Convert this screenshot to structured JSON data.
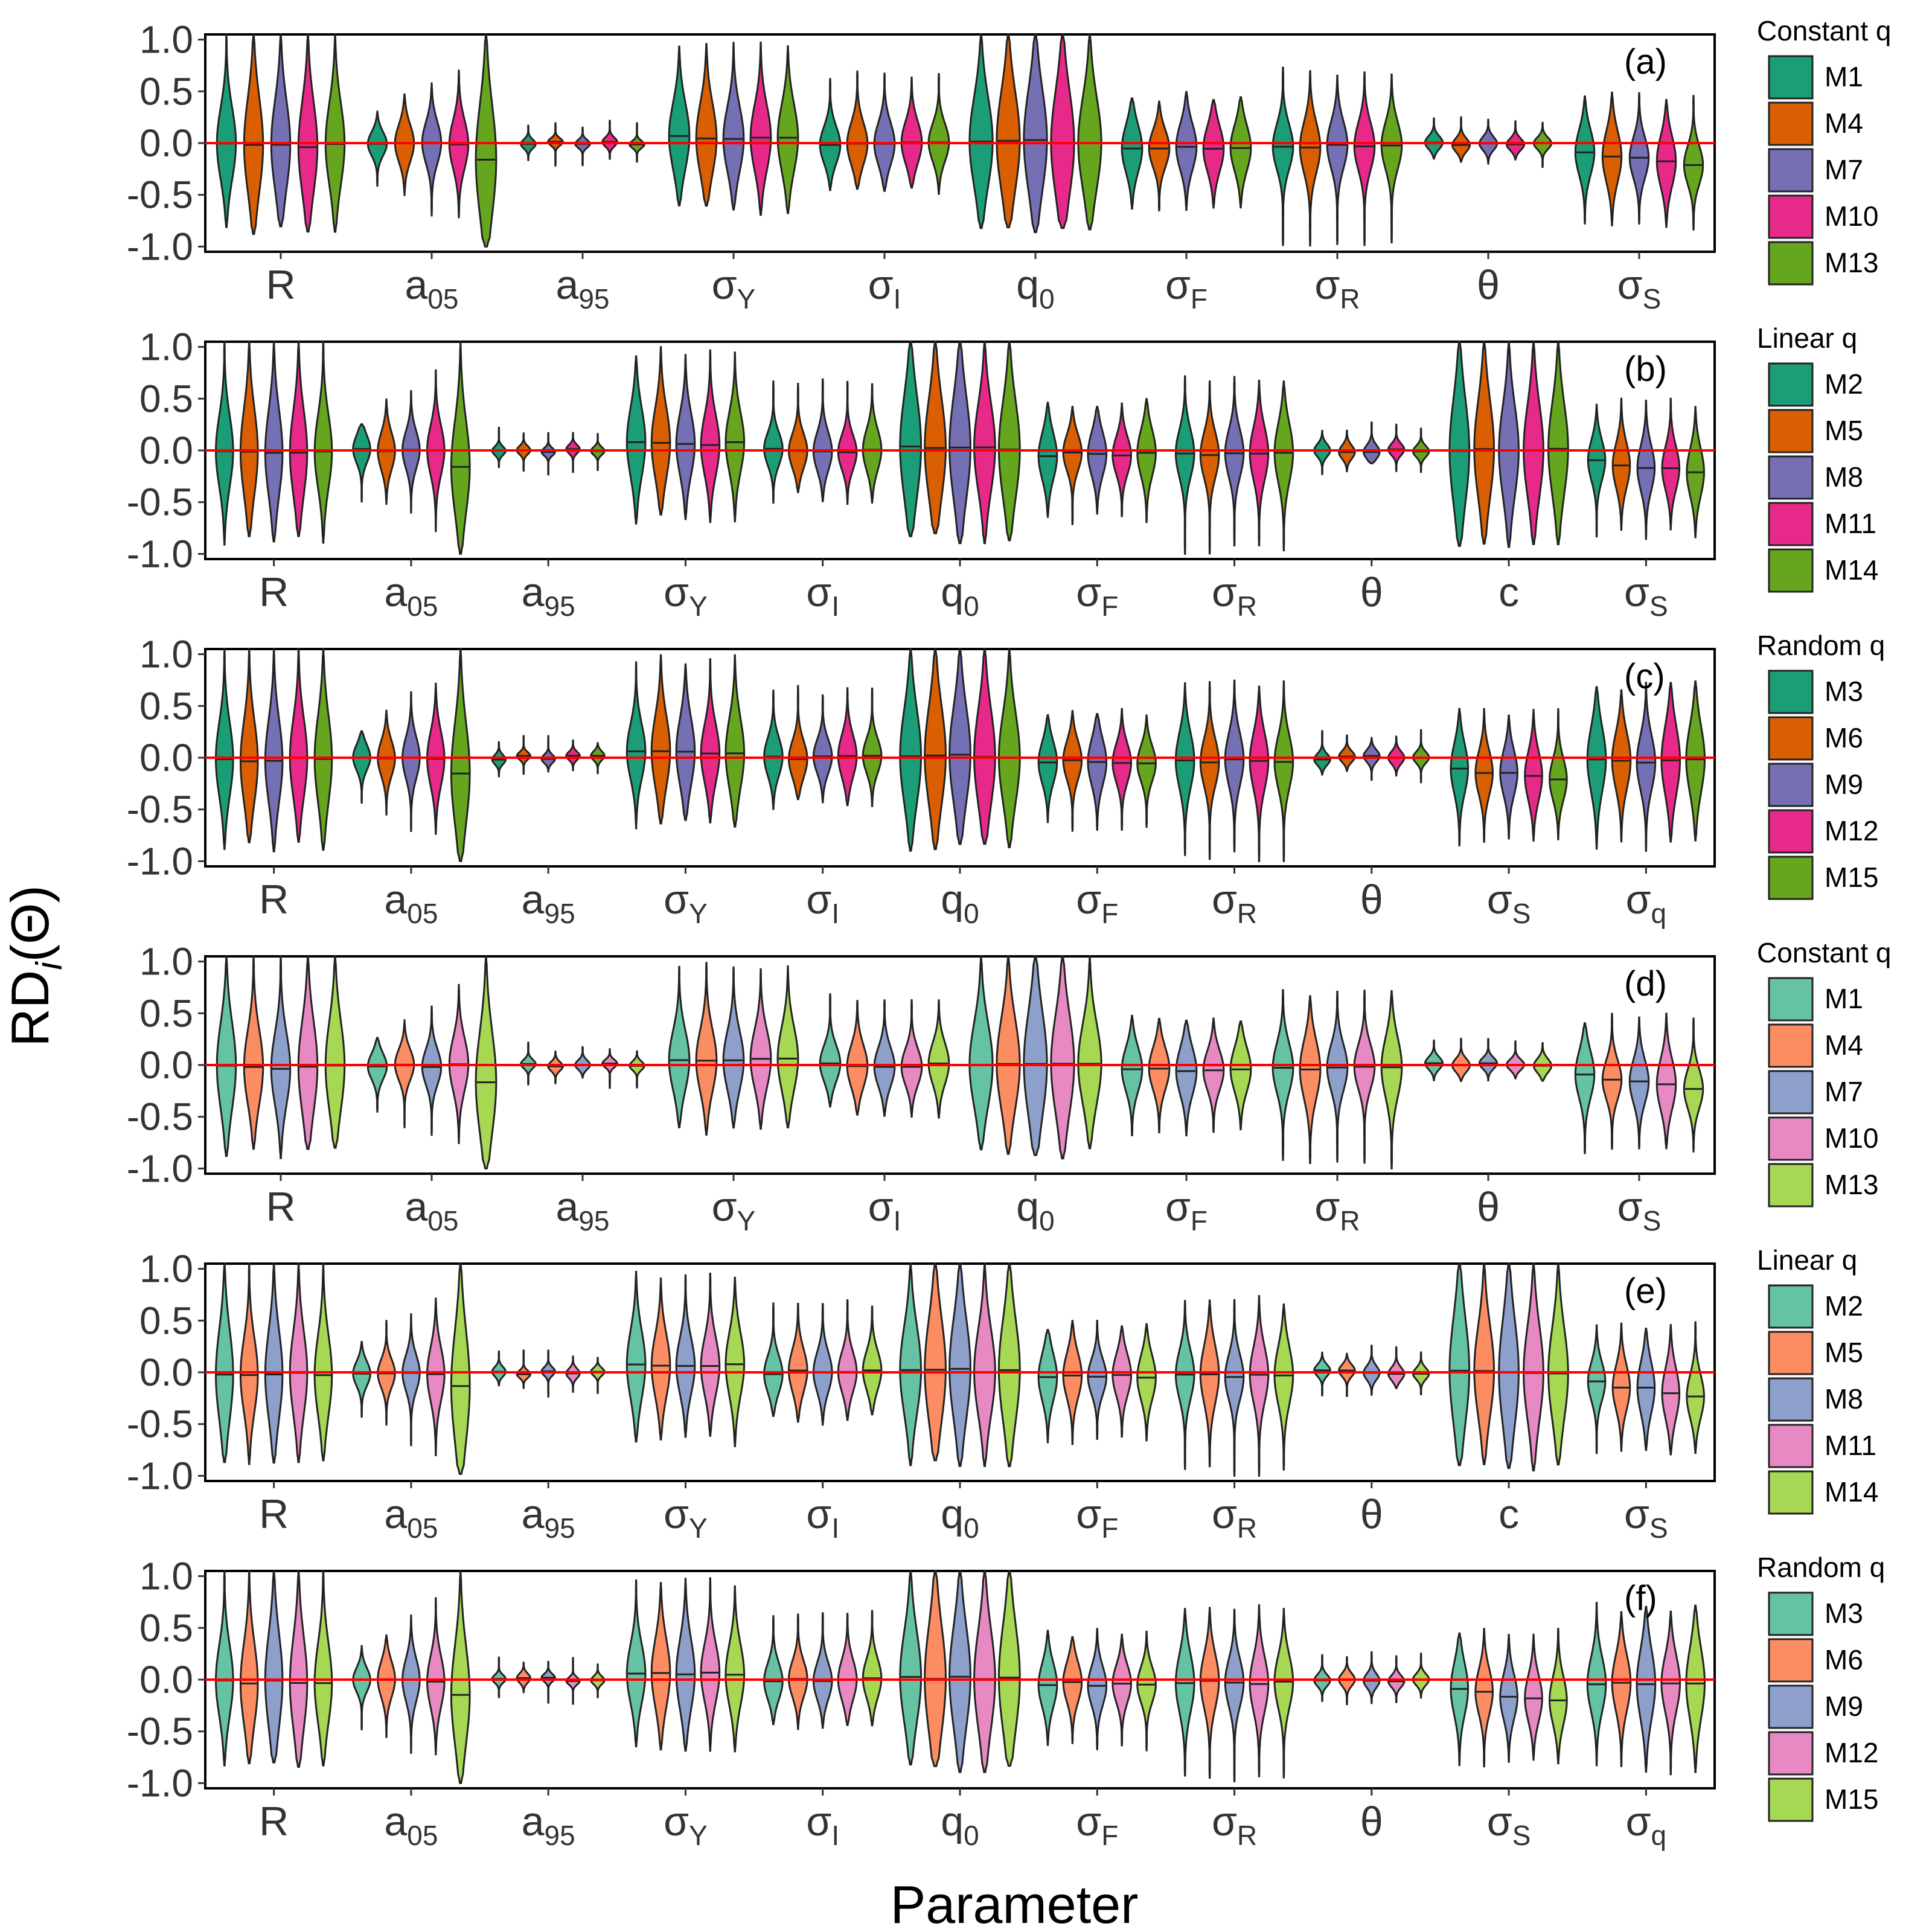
{
  "chart_data": {
    "type": "violin",
    "ylabel": "RD",
    "ylabel_sub": "i",
    "ylabel_tail": "(Θ)",
    "xlabel": "Parameter",
    "ylim": [
      -1.05,
      1.05
    ],
    "yticks": [
      1.0,
      0.5,
      0.0,
      -0.5,
      -1.0
    ],
    "ytick_labels": [
      "1.0",
      "0.5",
      "0.0",
      "-0.5",
      "-1.0"
    ],
    "reference_line": {
      "y": 0.0,
      "color": "#ff0000"
    },
    "palette_dark": [
      "#1b9e77",
      "#d95f02",
      "#7570b3",
      "#e7298a",
      "#66a61e"
    ],
    "palette_light": [
      "#66c2a5",
      "#fc8d62",
      "#8da0cb",
      "#e78ac3",
      "#a6d854"
    ],
    "panels": [
      {
        "tag": "(a)",
        "palette": "dark",
        "legend_title": "Constant q",
        "models": [
          "M1",
          "M4",
          "M7",
          "M10",
          "M13"
        ],
        "parameters": [
          {
            "base": "R",
            "sub": ""
          },
          {
            "base": "a",
            "sub": "05"
          },
          {
            "base": "a",
            "sub": "95"
          },
          {
            "base": "σ",
            "sub": "Y"
          },
          {
            "base": "σ",
            "sub": "I"
          },
          {
            "base": "q",
            "sub": "0"
          },
          {
            "base": "σ",
            "sub": "F"
          },
          {
            "base": "σ",
            "sub": "R"
          },
          {
            "base": "θ",
            "sub": ""
          },
          {
            "base": "σ",
            "sub": "S"
          }
        ]
      },
      {
        "tag": "(b)",
        "palette": "dark",
        "legend_title": "Linear q",
        "models": [
          "M2",
          "M5",
          "M8",
          "M11",
          "M14"
        ],
        "parameters": [
          {
            "base": "R",
            "sub": ""
          },
          {
            "base": "a",
            "sub": "05"
          },
          {
            "base": "a",
            "sub": "95"
          },
          {
            "base": "σ",
            "sub": "Y"
          },
          {
            "base": "σ",
            "sub": "I"
          },
          {
            "base": "q",
            "sub": "0"
          },
          {
            "base": "σ",
            "sub": "F"
          },
          {
            "base": "σ",
            "sub": "R"
          },
          {
            "base": "θ",
            "sub": ""
          },
          {
            "base": "c",
            "sub": ""
          },
          {
            "base": "σ",
            "sub": "S"
          }
        ]
      },
      {
        "tag": "(c)",
        "palette": "dark",
        "legend_title": "Random q",
        "models": [
          "M3",
          "M6",
          "M9",
          "M12",
          "M15"
        ],
        "parameters": [
          {
            "base": "R",
            "sub": ""
          },
          {
            "base": "a",
            "sub": "05"
          },
          {
            "base": "a",
            "sub": "95"
          },
          {
            "base": "σ",
            "sub": "Y"
          },
          {
            "base": "σ",
            "sub": "I"
          },
          {
            "base": "q",
            "sub": "0"
          },
          {
            "base": "σ",
            "sub": "F"
          },
          {
            "base": "σ",
            "sub": "R"
          },
          {
            "base": "θ",
            "sub": ""
          },
          {
            "base": "σ",
            "sub": "S"
          },
          {
            "base": "σ",
            "sub": "q"
          }
        ]
      },
      {
        "tag": "(d)",
        "palette": "light",
        "legend_title": "Constant q",
        "models": [
          "M1",
          "M4",
          "M7",
          "M10",
          "M13"
        ],
        "parameters": [
          {
            "base": "R",
            "sub": ""
          },
          {
            "base": "a",
            "sub": "05"
          },
          {
            "base": "a",
            "sub": "95"
          },
          {
            "base": "σ",
            "sub": "Y"
          },
          {
            "base": "σ",
            "sub": "I"
          },
          {
            "base": "q",
            "sub": "0"
          },
          {
            "base": "σ",
            "sub": "F"
          },
          {
            "base": "σ",
            "sub": "R"
          },
          {
            "base": "θ",
            "sub": ""
          },
          {
            "base": "σ",
            "sub": "S"
          }
        ]
      },
      {
        "tag": "(e)",
        "palette": "light",
        "legend_title": "Linear q",
        "models": [
          "M2",
          "M5",
          "M8",
          "M11",
          "M14"
        ],
        "parameters": [
          {
            "base": "R",
            "sub": ""
          },
          {
            "base": "a",
            "sub": "05"
          },
          {
            "base": "a",
            "sub": "95"
          },
          {
            "base": "σ",
            "sub": "Y"
          },
          {
            "base": "σ",
            "sub": "I"
          },
          {
            "base": "q",
            "sub": "0"
          },
          {
            "base": "σ",
            "sub": "F"
          },
          {
            "base": "σ",
            "sub": "R"
          },
          {
            "base": "θ",
            "sub": ""
          },
          {
            "base": "c",
            "sub": ""
          },
          {
            "base": "σ",
            "sub": "S"
          }
        ]
      },
      {
        "tag": "(f)",
        "palette": "light",
        "legend_title": "Random q",
        "models": [
          "M3",
          "M6",
          "M9",
          "M12",
          "M15"
        ],
        "parameters": [
          {
            "base": "R",
            "sub": ""
          },
          {
            "base": "a",
            "sub": "05"
          },
          {
            "base": "a",
            "sub": "95"
          },
          {
            "base": "σ",
            "sub": "Y"
          },
          {
            "base": "σ",
            "sub": "I"
          },
          {
            "base": "q",
            "sub": "0"
          },
          {
            "base": "σ",
            "sub": "F"
          },
          {
            "base": "σ",
            "sub": "R"
          },
          {
            "base": "θ",
            "sub": ""
          },
          {
            "base": "σ",
            "sub": "S"
          },
          {
            "base": "σ",
            "sub": "q"
          }
        ]
      }
    ]
  }
}
